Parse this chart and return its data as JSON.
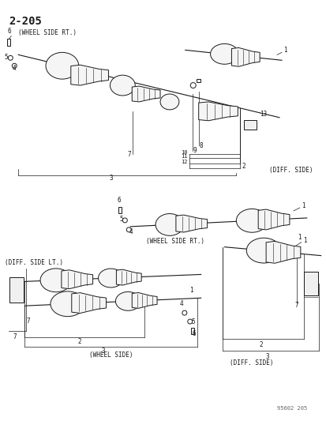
{
  "title": "2-205",
  "footer": "95602 205",
  "bg": "#ffffff",
  "fg": "#1a1a1a",
  "fig_w": 4.14,
  "fig_h": 5.33,
  "dpi": 100,
  "top": {
    "label_wheel": "(WHEEL SIDE RT.)",
    "label_diff": "(DIFF. SIDE)",
    "nums": [
      "1",
      "2",
      "3",
      "4",
      "5",
      "6",
      "7",
      "8",
      "9",
      "10",
      "11",
      "12",
      "13"
    ]
  },
  "mid": {
    "label_wheel": "(WHEEL SIDE RT.)",
    "nums": [
      "1",
      "4",
      "5",
      "6"
    ]
  },
  "bl": {
    "label_diff_lt": "(DIFF. SIDE LT.)",
    "label_wheel": "(WHEEL SIDE)",
    "nums": [
      "1",
      "2",
      "3",
      "4",
      "5",
      "6",
      "7"
    ]
  },
  "br": {
    "label_diff": "(DIFF. SIDE)",
    "nums": [
      "1",
      "2",
      "3",
      "7"
    ]
  }
}
